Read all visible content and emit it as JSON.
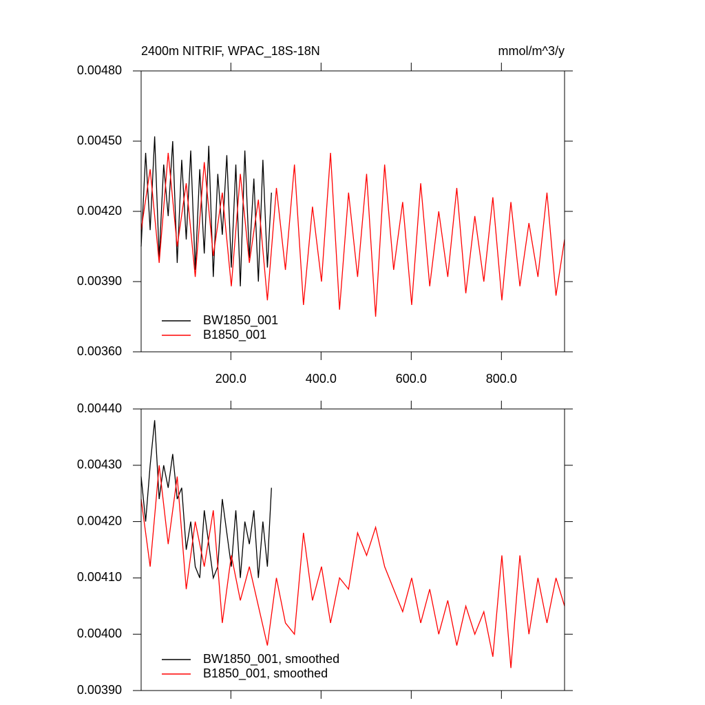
{
  "chart_data": [
    {
      "type": "line",
      "title": "2400m NITRIF, WPAC_18S-18N",
      "subtitle": "mmol/m^3/y",
      "xlim": [
        1,
        940
      ],
      "xticks": [
        {
          "value": 200,
          "label": "200.0"
        },
        {
          "value": 400,
          "label": "400.0"
        },
        {
          "value": 600,
          "label": "600.0"
        },
        {
          "value": 800,
          "label": "800.0"
        }
      ],
      "ylim": [
        0.0036,
        0.0048
      ],
      "yticks": [
        {
          "value": 0.0036,
          "label": "0.00360"
        },
        {
          "value": 0.0039,
          "label": "0.00390"
        },
        {
          "value": 0.0042,
          "label": "0.00420"
        },
        {
          "value": 0.0045,
          "label": "0.00450"
        },
        {
          "value": 0.0048,
          "label": "0.00480"
        }
      ],
      "legend": "lower left",
      "series": [
        {
          "name": "BW1850_001",
          "color": "#000000",
          "x": [
            1,
            11,
            21,
            31,
            41,
            51,
            61,
            71,
            81,
            91,
            101,
            111,
            121,
            131,
            141,
            151,
            161,
            171,
            181,
            191,
            201,
            211,
            221,
            231,
            241,
            251,
            261,
            271,
            281,
            290
          ],
          "values": [
            0.00405,
            0.00445,
            0.00412,
            0.00452,
            0.004,
            0.0044,
            0.00418,
            0.0045,
            0.00398,
            0.00442,
            0.00408,
            0.00446,
            0.00395,
            0.00438,
            0.00402,
            0.00448,
            0.00392,
            0.00436,
            0.0041,
            0.00444,
            0.00396,
            0.0044,
            0.00388,
            0.00446,
            0.004,
            0.00434,
            0.0039,
            0.00442,
            0.00396,
            0.00428
          ]
        },
        {
          "name": "B1850_001",
          "color": "#ff0000",
          "x": [
            1,
            21,
            41,
            61,
            81,
            101,
            121,
            141,
            161,
            181,
            201,
            221,
            241,
            261,
            281,
            301,
            321,
            341,
            361,
            381,
            401,
            421,
            441,
            461,
            481,
            501,
            521,
            541,
            561,
            581,
            601,
            621,
            641,
            661,
            681,
            701,
            721,
            741,
            761,
            781,
            801,
            821,
            841,
            861,
            881,
            901,
            921,
            940
          ],
          "values": [
            0.00412,
            0.00438,
            0.00398,
            0.00445,
            0.00405,
            0.00432,
            0.00392,
            0.00441,
            0.00401,
            0.00428,
            0.00388,
            0.00436,
            0.00398,
            0.00425,
            0.00382,
            0.0043,
            0.00395,
            0.0044,
            0.0038,
            0.00422,
            0.0039,
            0.00445,
            0.00378,
            0.00428,
            0.00392,
            0.00436,
            0.00375,
            0.0044,
            0.00395,
            0.00424,
            0.0038,
            0.00432,
            0.00388,
            0.0042,
            0.00392,
            0.0043,
            0.00385,
            0.00418,
            0.0039,
            0.00426,
            0.00382,
            0.00424,
            0.00388,
            0.00415,
            0.00392,
            0.00428,
            0.00384,
            0.00408
          ]
        }
      ]
    },
    {
      "type": "line",
      "xlim": [
        1,
        940
      ],
      "xticks": [
        200,
        400,
        600,
        800
      ],
      "ylim": [
        0.0039,
        0.0044
      ],
      "yticks": [
        {
          "value": 0.0039,
          "label": "0.00390"
        },
        {
          "value": 0.004,
          "label": "0.00400"
        },
        {
          "value": 0.0041,
          "label": "0.00410"
        },
        {
          "value": 0.0042,
          "label": "0.00420"
        },
        {
          "value": 0.0043,
          "label": "0.00430"
        },
        {
          "value": 0.0044,
          "label": "0.00440"
        }
      ],
      "legend": "lower left",
      "series": [
        {
          "name": "BW1850_001, smoothed",
          "color": "#000000",
          "x": [
            1,
            11,
            21,
            31,
            41,
            51,
            61,
            71,
            81,
            91,
            101,
            111,
            121,
            131,
            141,
            151,
            161,
            171,
            181,
            191,
            201,
            211,
            221,
            231,
            241,
            251,
            261,
            271,
            281,
            290
          ],
          "values": [
            0.00428,
            0.0042,
            0.0043,
            0.00438,
            0.00424,
            0.0043,
            0.00426,
            0.00432,
            0.00424,
            0.00426,
            0.00415,
            0.0042,
            0.00412,
            0.0041,
            0.00422,
            0.00416,
            0.0041,
            0.00412,
            0.00424,
            0.00418,
            0.00412,
            0.00422,
            0.0041,
            0.0042,
            0.00416,
            0.00422,
            0.0041,
            0.0042,
            0.00412,
            0.00426
          ]
        },
        {
          "name": "B1850_001, smoothed",
          "color": "#ff0000",
          "x": [
            1,
            21,
            41,
            61,
            81,
            101,
            121,
            141,
            161,
            181,
            201,
            221,
            241,
            261,
            281,
            301,
            321,
            341,
            361,
            381,
            401,
            421,
            441,
            461,
            481,
            501,
            521,
            541,
            561,
            581,
            601,
            621,
            641,
            661,
            681,
            701,
            721,
            741,
            761,
            781,
            801,
            821,
            841,
            861,
            881,
            901,
            921,
            940
          ],
          "values": [
            0.00424,
            0.00412,
            0.0043,
            0.00416,
            0.00428,
            0.00408,
            0.0042,
            0.00412,
            0.00422,
            0.00402,
            0.00414,
            0.00406,
            0.00412,
            0.00405,
            0.00398,
            0.0041,
            0.00402,
            0.004,
            0.00418,
            0.00406,
            0.00412,
            0.00402,
            0.0041,
            0.00408,
            0.00418,
            0.00414,
            0.00419,
            0.00412,
            0.00408,
            0.00404,
            0.0041,
            0.00402,
            0.00408,
            0.004,
            0.00406,
            0.00398,
            0.00405,
            0.004,
            0.00404,
            0.00396,
            0.00414,
            0.00394,
            0.00414,
            0.004,
            0.0041,
            0.00402,
            0.0041,
            0.00405
          ]
        }
      ]
    }
  ]
}
